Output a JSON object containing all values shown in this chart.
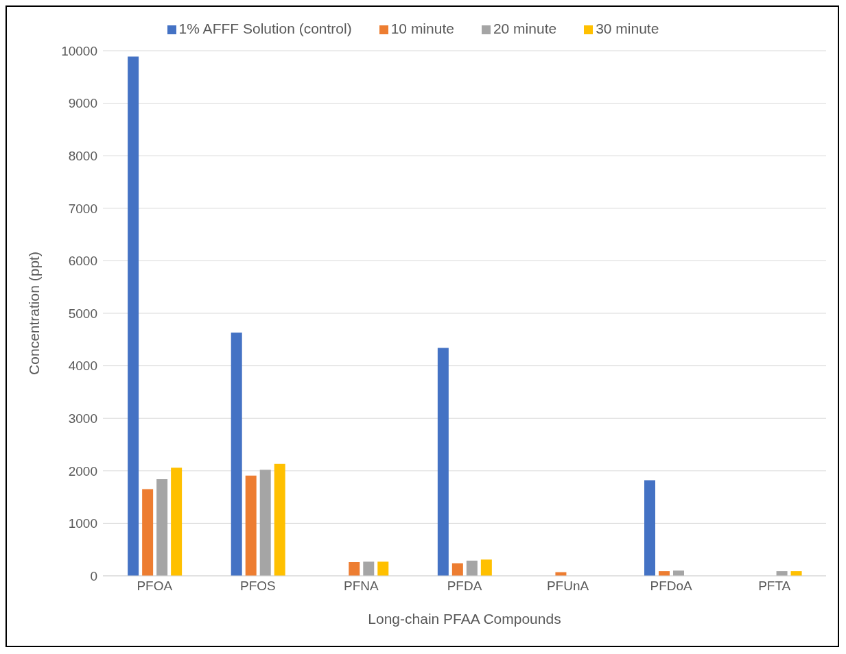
{
  "chart_data": {
    "type": "bar",
    "xlabel": "Long-chain PFAA Compounds",
    "ylabel": "Concentration (ppt)",
    "categories": [
      "PFOA",
      "PFOS",
      "PFNA",
      "PFDA",
      "PFUnA",
      "PFDoA",
      "PFTA"
    ],
    "series": [
      {
        "name": "1% AFFF Solution (control)",
        "color": "#4472c4",
        "values": [
          9890,
          4630,
          null,
          4340,
          null,
          1820,
          null
        ]
      },
      {
        "name": "10 minute",
        "color": "#ed7d31",
        "values": [
          1650,
          1910,
          260,
          240,
          70,
          90,
          null
        ]
      },
      {
        "name": "20 minute",
        "color": "#a5a5a5",
        "values": [
          1840,
          2020,
          270,
          290,
          null,
          100,
          90
        ]
      },
      {
        "name": "30 minute",
        "color": "#ffc000",
        "values": [
          2060,
          2130,
          270,
          310,
          null,
          null,
          90
        ]
      }
    ],
    "ylim": [
      0,
      10000
    ],
    "yticks": [
      0,
      1000,
      2000,
      3000,
      4000,
      5000,
      6000,
      7000,
      8000,
      9000,
      10000
    ],
    "grid": "y",
    "legend": "top"
  }
}
